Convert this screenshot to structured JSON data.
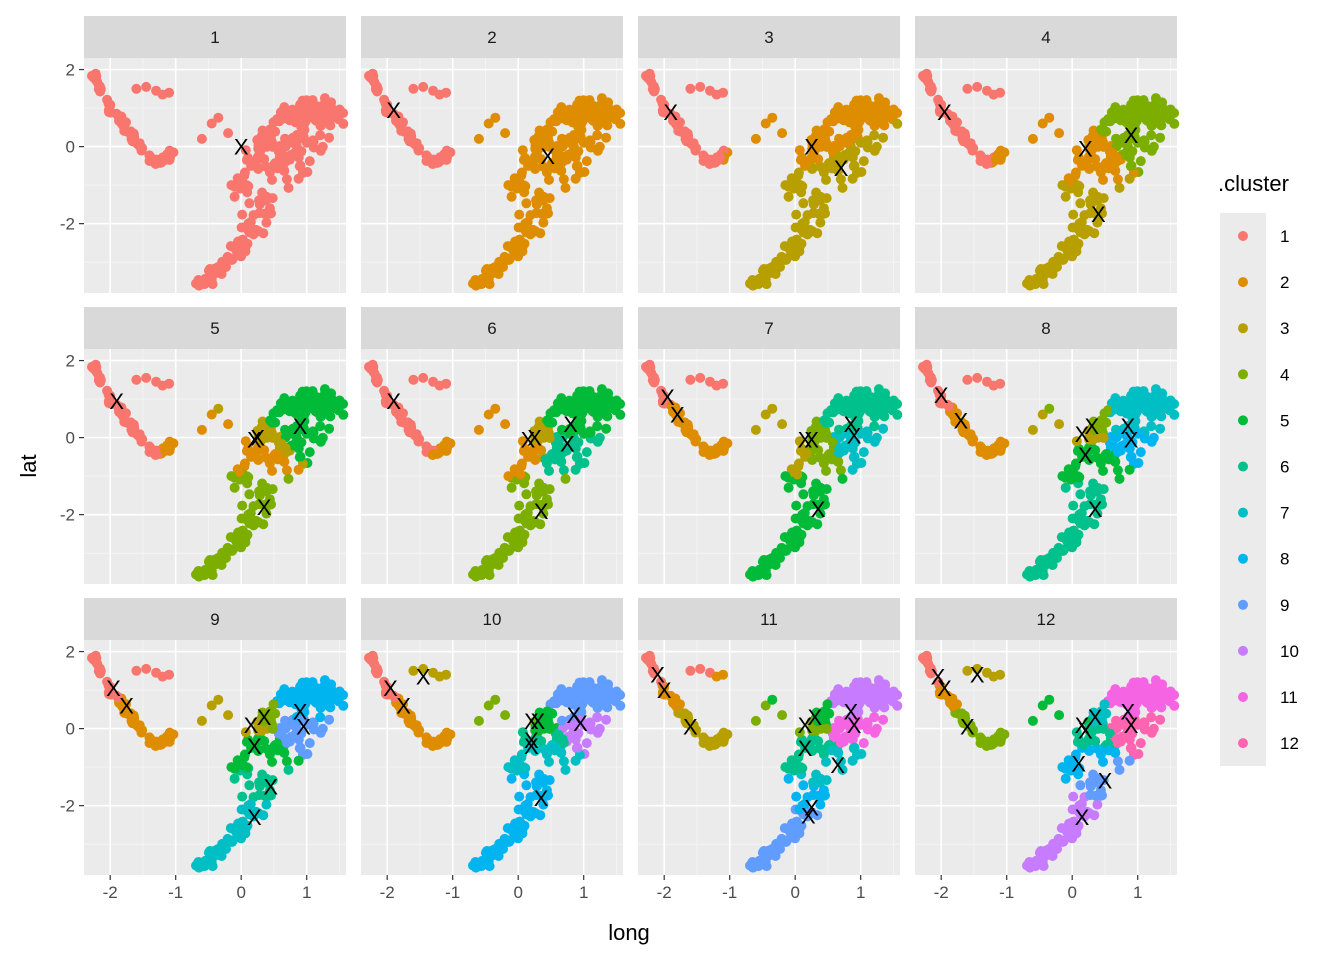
{
  "chart_data": {
    "type": "scatter",
    "facet_by": "number of clusters k",
    "panels": [
      "1",
      "2",
      "3",
      "4",
      "5",
      "6",
      "7",
      "8",
      "9",
      "10",
      "11",
      "12"
    ],
    "xlabel": "long",
    "ylabel": "lat",
    "xlim": [
      -2.4,
      1.6
    ],
    "ylim": [
      -3.8,
      2.3
    ],
    "x_ticks": [
      -2,
      -1,
      0,
      1
    ],
    "x_tick_labels": [
      "-2",
      "-1",
      "0",
      "1"
    ],
    "y_ticks": [
      -2,
      0,
      2
    ],
    "y_tick_labels": [
      "-2",
      "0",
      "2"
    ],
    "grid": true,
    "legend": {
      "title": ".cluster",
      "position": "right",
      "entries": [
        "1",
        "2",
        "3",
        "4",
        "5",
        "6",
        "7",
        "8",
        "9",
        "10",
        "11",
        "12"
      ]
    },
    "cluster_colors": [
      "#F8766D",
      "#DE8C00",
      "#B79F00",
      "#7CAE00",
      "#00BA38",
      "#00C08B",
      "#00BFC4",
      "#00B4F0",
      "#619CFF",
      "#C77CFF",
      "#F564E3",
      "#FF64B0"
    ],
    "point_shape": {
      "description": "approximate shape of the point cloud, repeated in every panel",
      "arc": {
        "x": [
          -2.25,
          -2.15,
          -2.0,
          -1.8,
          -1.6,
          -1.45,
          -1.3,
          -1.15,
          -1.05
        ],
        "y": [
          1.85,
          1.5,
          1.0,
          0.6,
          0.1,
          -0.25,
          -0.4,
          -0.35,
          -0.1
        ]
      },
      "body_spine": {
        "x": [
          -0.6,
          -0.3,
          0.05,
          0.3,
          0.55,
          0.85,
          1.1,
          1.35
        ],
        "y": [
          -3.55,
          -3.1,
          -2.6,
          -1.8,
          -0.9,
          -0.1,
          0.5,
          0.95
        ]
      },
      "body_top": {
        "x": [
          -0.05,
          0.3,
          0.7,
          1.0,
          1.4
        ],
        "y": [
          -1.0,
          0.1,
          0.8,
          1.05,
          1.0
        ]
      }
    },
    "centroids_marker": "X",
    "centroids": {
      "1": [
        [
          0.0,
          0.0
        ]
      ],
      "2": [
        [
          -1.9,
          0.95
        ],
        [
          0.45,
          -0.25
        ]
      ],
      "3": [
        [
          -1.9,
          0.9
        ],
        [
          0.25,
          0.0
        ],
        [
          0.7,
          -0.55
        ]
      ],
      "4": [
        [
          -1.95,
          0.9
        ],
        [
          0.2,
          -0.05
        ],
        [
          0.4,
          -1.75
        ],
        [
          0.9,
          0.3
        ]
      ],
      "5": [
        [
          -1.9,
          0.95
        ],
        [
          0.2,
          -0.05
        ],
        [
          0.25,
          0.0
        ],
        [
          0.35,
          -1.8
        ],
        [
          0.9,
          0.3
        ]
      ],
      "6": [
        [
          -1.9,
          0.95
        ],
        [
          0.15,
          -0.05
        ],
        [
          0.25,
          0.0
        ],
        [
          0.35,
          -1.9
        ],
        [
          0.8,
          0.35
        ],
        [
          0.75,
          -0.15
        ]
      ],
      "7": [
        [
          -1.95,
          1.05
        ],
        [
          -1.8,
          0.6
        ],
        [
          0.15,
          -0.05
        ],
        [
          0.25,
          -0.05
        ],
        [
          0.35,
          -1.85
        ],
        [
          0.85,
          0.35
        ],
        [
          0.9,
          0.05
        ]
      ],
      "8": [
        [
          -2.0,
          1.1
        ],
        [
          -1.7,
          0.45
        ],
        [
          0.15,
          0.1
        ],
        [
          0.3,
          0.3
        ],
        [
          0.2,
          -0.45
        ],
        [
          0.35,
          -1.85
        ],
        [
          0.85,
          0.3
        ],
        [
          0.9,
          -0.05
        ]
      ],
      "9": [
        [
          -1.95,
          1.05
        ],
        [
          -1.75,
          0.6
        ],
        [
          0.15,
          0.1
        ],
        [
          0.35,
          0.3
        ],
        [
          0.2,
          -0.45
        ],
        [
          0.45,
          -1.5
        ],
        [
          0.2,
          -2.3
        ],
        [
          0.9,
          0.45
        ],
        [
          0.95,
          0.05
        ]
      ],
      "10": [
        [
          -1.95,
          1.05
        ],
        [
          -1.75,
          0.6
        ],
        [
          -1.45,
          1.35
        ],
        [
          0.2,
          0.2
        ],
        [
          0.3,
          0.2
        ],
        [
          0.2,
          -0.3
        ],
        [
          0.2,
          -0.45
        ],
        [
          0.35,
          -1.8
        ],
        [
          0.85,
          0.35
        ],
        [
          0.95,
          0.15
        ]
      ],
      "11": [
        [
          -2.1,
          1.4
        ],
        [
          -2.0,
          1.0
        ],
        [
          -1.6,
          0.05
        ],
        [
          0.15,
          0.1
        ],
        [
          0.3,
          0.3
        ],
        [
          0.15,
          -0.5
        ],
        [
          0.65,
          -0.95
        ],
        [
          0.25,
          -2.05
        ],
        [
          0.2,
          -2.25
        ],
        [
          0.85,
          0.45
        ],
        [
          0.9,
          0.1
        ]
      ],
      "12": [
        [
          -2.05,
          1.35
        ],
        [
          -1.95,
          1.05
        ],
        [
          -1.45,
          1.4
        ],
        [
          -1.6,
          0.05
        ],
        [
          0.15,
          0.1
        ],
        [
          0.2,
          -0.05
        ],
        [
          0.35,
          0.3
        ],
        [
          0.1,
          -0.9
        ],
        [
          0.5,
          -1.35
        ],
        [
          0.15,
          -2.3
        ],
        [
          0.85,
          0.45
        ],
        [
          0.9,
          0.1
        ]
      ]
    }
  }
}
